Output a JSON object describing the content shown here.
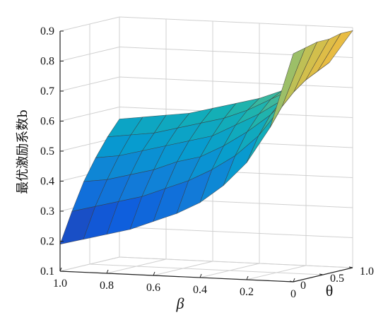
{
  "chart_data": {
    "type": "surface",
    "zlabel": "最优激励系数b",
    "xlabel": "β",
    "ylabel": "θ",
    "beta_ticks": [
      "1.0",
      "0.8",
      "0.6",
      "0.4",
      "0.2",
      "0"
    ],
    "theta_ticks": [
      "0",
      "0.5",
      "1.0"
    ],
    "z_ticks": [
      "0.1",
      "0.2",
      "0.3",
      "0.4",
      "0.5",
      "0.6",
      "0.7",
      "0.8",
      "0.9"
    ],
    "beta_range": [
      0,
      1
    ],
    "theta_range": [
      0,
      1
    ],
    "zlim": [
      0.1,
      0.9
    ],
    "grid": true,
    "colormap": "parula",
    "beta_values": [
      1.0,
      0.9,
      0.8,
      0.7,
      0.6,
      0.5,
      0.4,
      0.3,
      0.2,
      0.1,
      0.0
    ],
    "theta_values": [
      0.0,
      0.2,
      0.4,
      0.6,
      0.8,
      1.0
    ],
    "z_values": [
      [
        0.19,
        0.21,
        0.23,
        0.25,
        0.28,
        0.31,
        0.35,
        0.41,
        0.49,
        0.61,
        0.86
      ],
      [
        0.29,
        0.31,
        0.33,
        0.35,
        0.38,
        0.41,
        0.45,
        0.5,
        0.57,
        0.67,
        0.87
      ],
      [
        0.38,
        0.39,
        0.41,
        0.43,
        0.46,
        0.48,
        0.52,
        0.57,
        0.63,
        0.71,
        0.88
      ],
      [
        0.45,
        0.46,
        0.48,
        0.5,
        0.52,
        0.54,
        0.58,
        0.62,
        0.67,
        0.74,
        0.88
      ],
      [
        0.51,
        0.52,
        0.53,
        0.55,
        0.57,
        0.59,
        0.62,
        0.66,
        0.7,
        0.76,
        0.89
      ],
      [
        0.56,
        0.57,
        0.58,
        0.59,
        0.61,
        0.63,
        0.65,
        0.68,
        0.72,
        0.78,
        0.89
      ]
    ]
  }
}
